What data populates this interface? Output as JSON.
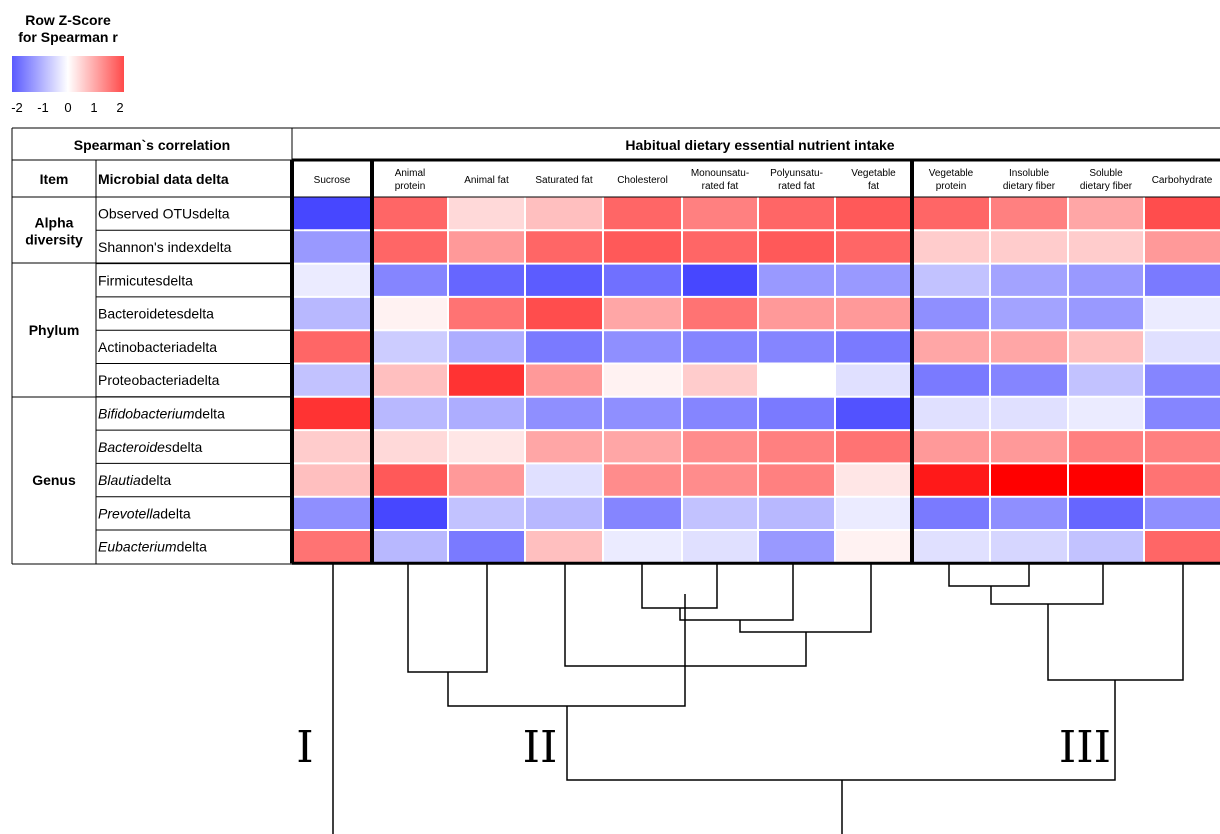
{
  "legend": {
    "title_line1": "Row Z-Score",
    "title_line2": "for Spearman r",
    "ticks": [
      "-2",
      "-1",
      "0",
      "1",
      "2"
    ]
  },
  "table": {
    "left_header": "Spearman`s correlation",
    "right_header": "Habitual dietary essential nutrient intake",
    "item_header": "Item",
    "microbial_header": "Microbial data delta"
  },
  "colors": {
    "low": "#3333ff",
    "mid": "#ffffff",
    "high": "#ff0000",
    "grid_line": "#000000"
  },
  "chart_data": {
    "type": "heatmap",
    "title": "Habitual dietary essential nutrient intake",
    "color_scale": {
      "label": "Row Z-Score for Spearman r",
      "min": -2,
      "max": 2
    },
    "columns": [
      {
        "line1": "Sucrose",
        "line2": ""
      },
      {
        "line1": "Animal",
        "line2": "protein"
      },
      {
        "line1": "Animal fat",
        "line2": ""
      },
      {
        "line1": "Saturated fat",
        "line2": ""
      },
      {
        "line1": "Cholesterol",
        "line2": ""
      },
      {
        "line1": "Monounsatu-",
        "line2": "rated fat"
      },
      {
        "line1": "Polyunsatu-",
        "line2": "rated fat"
      },
      {
        "line1": "Vegetable",
        "line2": "fat"
      },
      {
        "line1": "Vegetable",
        "line2": "protein"
      },
      {
        "line1": "Insoluble",
        "line2": "dietary fiber"
      },
      {
        "line1": "Soluble",
        "line2": "dietary fiber"
      },
      {
        "line1": "Carbohydrate",
        "line2": ""
      }
    ],
    "groups": [
      {
        "label_line1": "Alpha",
        "label_line2": "diversity",
        "rows": [
          0,
          1
        ]
      },
      {
        "label_line1": "Phylum",
        "label_line2": "",
        "rows": [
          2,
          3,
          4,
          5
        ]
      },
      {
        "label_line1": "Genus",
        "label_line2": "",
        "rows": [
          6,
          7,
          8,
          9,
          10
        ]
      }
    ],
    "rows": [
      {
        "name": "Observed OTUs",
        "suffix": "delta",
        "italic": false,
        "values": [
          -1.8,
          1.2,
          0.3,
          0.5,
          1.2,
          1.0,
          1.2,
          1.3,
          1.2,
          1.0,
          0.7,
          1.4
        ]
      },
      {
        "name": "Shannon's index",
        "suffix": "delta",
        "italic": false,
        "values": [
          -1.0,
          1.2,
          0.8,
          1.2,
          1.3,
          1.2,
          1.3,
          1.2,
          0.4,
          0.4,
          0.4,
          0.8
        ]
      },
      {
        "name": "Firmicutes",
        "suffix": "delta",
        "italic": false,
        "values": [
          -0.2,
          -1.2,
          -1.5,
          -1.6,
          -1.4,
          -1.8,
          -1.0,
          -1.0,
          -0.6,
          -0.9,
          -1.0,
          -1.3
        ]
      },
      {
        "name": "Bacteroidetes",
        "suffix": "delta",
        "italic": false,
        "values": [
          -0.7,
          0.1,
          1.1,
          1.4,
          0.7,
          1.1,
          0.8,
          0.8,
          -1.1,
          -0.9,
          -1.0,
          -0.2
        ]
      },
      {
        "name": "Actinobacteria",
        "suffix": "delta",
        "italic": false,
        "values": [
          1.2,
          -0.5,
          -0.8,
          -1.3,
          -1.1,
          -1.2,
          -1.2,
          -1.3,
          0.7,
          0.7,
          0.5,
          -0.3
        ]
      },
      {
        "name": "Proteobacteria",
        "suffix": "delta",
        "italic": false,
        "values": [
          -0.6,
          0.5,
          1.6,
          0.8,
          0.1,
          0.4,
          0.0,
          -0.3,
          -1.3,
          -1.2,
          -0.6,
          -1.2
        ]
      },
      {
        "name": "Bifidobacterium",
        "suffix": "delta",
        "italic": true,
        "values": [
          1.6,
          -0.7,
          -0.8,
          -1.1,
          -1.1,
          -1.2,
          -1.3,
          -1.7,
          -0.3,
          -0.3,
          -0.2,
          -1.2
        ]
      },
      {
        "name": "Bacteroides",
        "suffix": "delta",
        "italic": true,
        "values": [
          0.4,
          0.3,
          0.2,
          0.7,
          0.7,
          0.9,
          1.0,
          1.1,
          0.8,
          0.8,
          1.0,
          1.0
        ]
      },
      {
        "name": "Blautia",
        "suffix": "delta",
        "italic": true,
        "values": [
          0.5,
          1.3,
          0.8,
          -0.3,
          0.9,
          0.9,
          1.0,
          0.2,
          1.8,
          2.0,
          2.0,
          1.1
        ]
      },
      {
        "name": "Prevotella",
        "suffix": "delta",
        "italic": true,
        "values": [
          -1.1,
          -1.8,
          -0.6,
          -0.7,
          -1.2,
          -0.6,
          -0.7,
          -0.2,
          -1.3,
          -1.1,
          -1.5,
          -1.1
        ]
      },
      {
        "name": "Eubacterium",
        "suffix": "delta",
        "italic": true,
        "values": [
          1.1,
          -0.7,
          -1.3,
          0.5,
          -0.2,
          -0.3,
          -1.0,
          0.1,
          -0.3,
          -0.4,
          -0.6,
          1.2
        ]
      }
    ],
    "clusters": [
      {
        "label": "I",
        "columns": [
          0
        ]
      },
      {
        "label": "II",
        "columns": [
          1,
          2,
          3,
          4,
          5,
          6,
          7
        ]
      },
      {
        "label": "III",
        "columns": [
          8,
          9,
          10,
          11
        ]
      }
    ]
  }
}
